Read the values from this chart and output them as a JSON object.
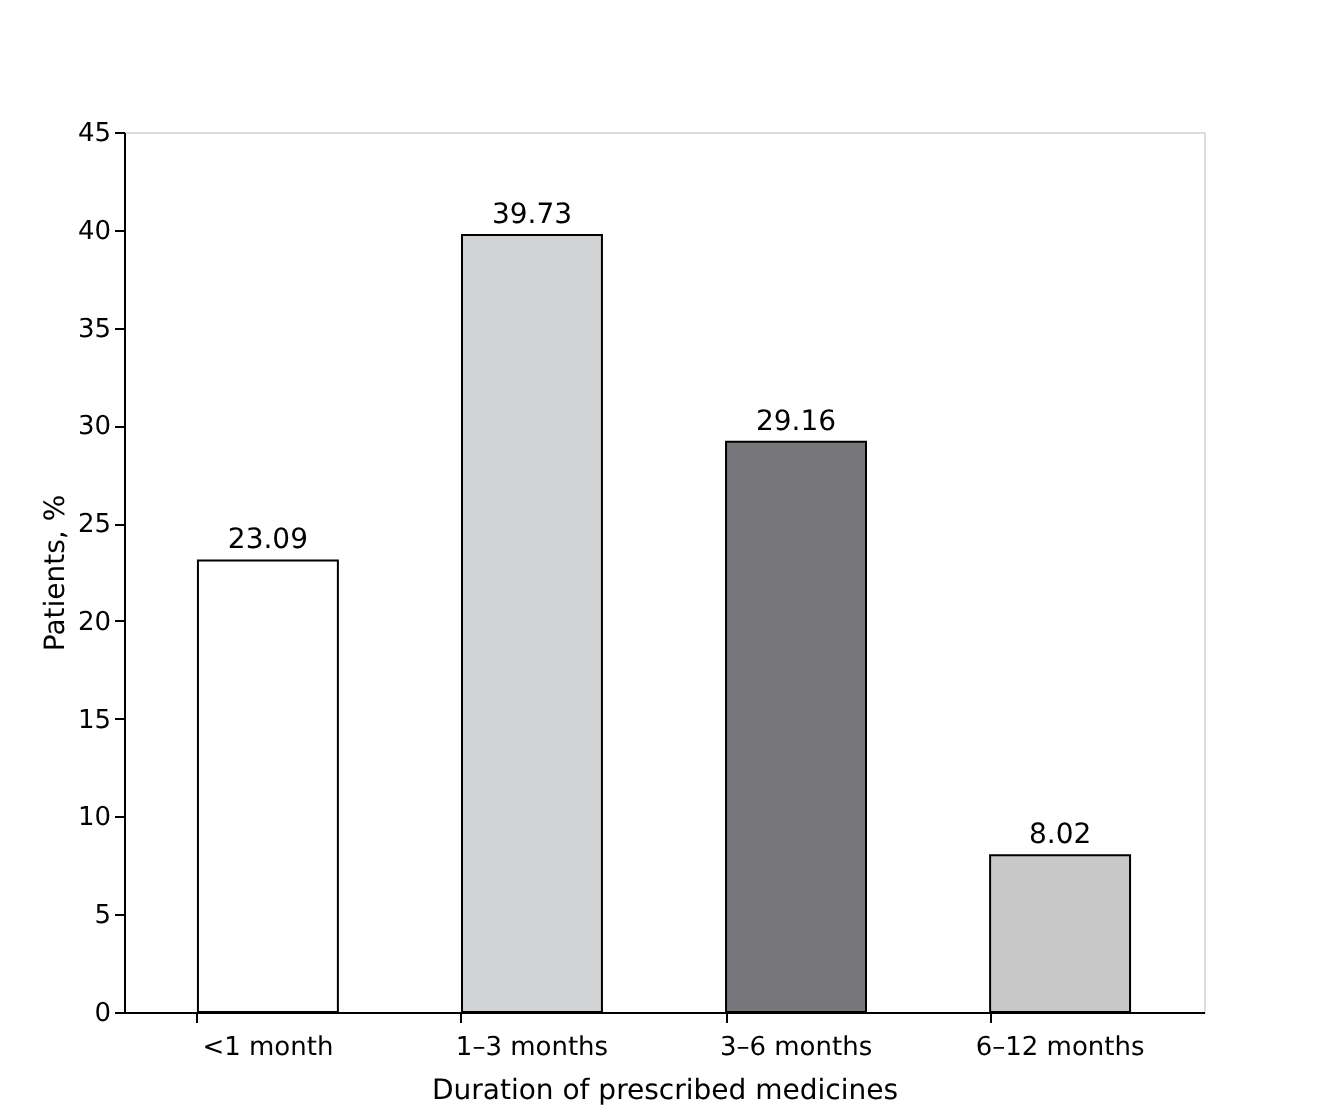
{
  "chart_data": {
    "type": "bar",
    "xlabel": "Duration of prescribed medicines",
    "ylabel": "Patients, %",
    "categories": [
      "<1 month",
      "1–3 months",
      "3–6 months",
      "6–12 months"
    ],
    "values": [
      23.09,
      39.73,
      29.16,
      8.02
    ],
    "colors": [
      "#ffffff",
      "#d1d2d4",
      "#77777b",
      "#c8c8c8"
    ],
    "ylim": [
      0,
      45
    ],
    "yticks": [
      0,
      5,
      10,
      15,
      20,
      25,
      30,
      35,
      40,
      45
    ],
    "grid": false,
    "data_labels": true
  }
}
